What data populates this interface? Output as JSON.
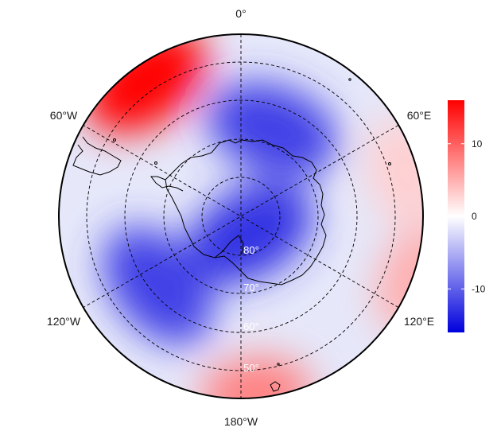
{
  "map": {
    "projection": "south-polar-stereographic",
    "field_colors": {
      "low": "#0000dd",
      "mid": "#ffffff",
      "high": "#ff0000"
    },
    "longitude_labels": [
      "0°",
      "60°E",
      "120°E",
      "180°W",
      "120°W",
      "60°W"
    ],
    "latitude_labels": [
      "80°",
      "70°",
      "60°",
      "50°"
    ],
    "anomaly_centers": [
      {
        "lon": -35,
        "lat": -47,
        "value": 16,
        "note": "strong positive"
      },
      {
        "lon": 20,
        "lat": -66,
        "value": -12,
        "note": "negative"
      },
      {
        "lon": 150,
        "lat": -85,
        "value": -13,
        "note": "negative"
      },
      {
        "lon": -130,
        "lat": -62,
        "value": -12,
        "note": "negative"
      },
      {
        "lon": 175,
        "lat": -44,
        "value": 8,
        "note": "positive"
      },
      {
        "lon": 110,
        "lat": -42,
        "value": 5,
        "note": "weak positive"
      },
      {
        "lon": 75,
        "lat": -46,
        "value": 3,
        "note": "weak positive"
      }
    ]
  },
  "colorbar": {
    "min": -16,
    "max": 16,
    "ticks": [
      {
        "value": 10,
        "label": "10"
      },
      {
        "value": 0,
        "label": "0"
      },
      {
        "value": -10,
        "label": "-10"
      }
    ]
  }
}
